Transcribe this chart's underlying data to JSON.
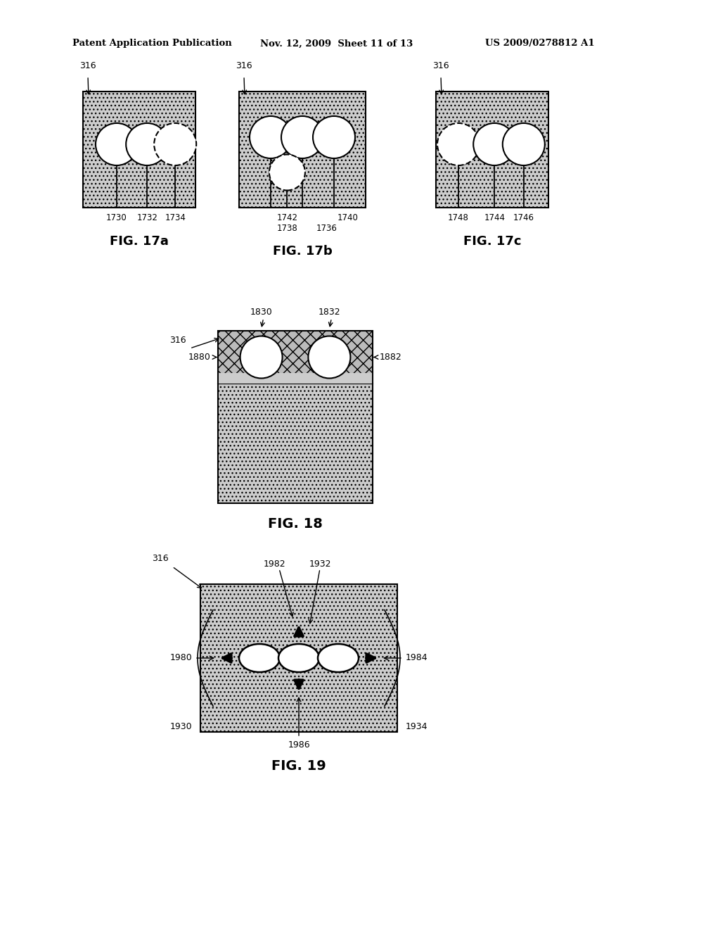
{
  "bg_color": "#ffffff",
  "header_left": "Patent Application Publication",
  "header_mid": "Nov. 12, 2009  Sheet 11 of 13",
  "header_right": "US 2009/0278812 A1",
  "fig17a_label": "FIG. 17a",
  "fig17b_label": "FIG. 17b",
  "fig17c_label": "FIG. 17c",
  "fig18_label": "FIG. 18",
  "fig19_label": "FIG. 19"
}
